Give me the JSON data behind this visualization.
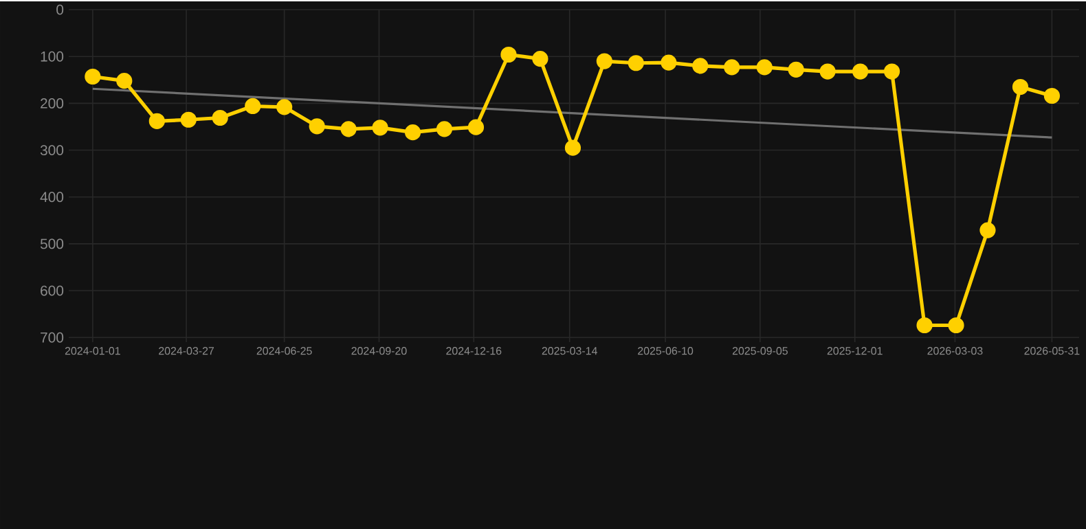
{
  "chart_data": {
    "type": "line",
    "x": [
      "2024-01-01",
      "2024-01-30",
      "2024-02-29",
      "2024-03-29",
      "2024-04-27",
      "2024-05-27",
      "2024-06-25",
      "2024-07-25",
      "2024-08-23",
      "2024-09-21",
      "2024-10-21",
      "2024-11-19",
      "2024-12-18",
      "2025-01-17",
      "2025-02-15",
      "2025-03-17",
      "2025-04-15",
      "2025-05-14",
      "2025-06-13",
      "2025-07-12",
      "2025-08-10",
      "2025-09-09",
      "2025-10-08",
      "2025-11-06",
      "2025-12-06",
      "2026-01-04",
      "2026-02-03",
      "2026-03-04",
      "2026-04-02",
      "2026-05-02",
      "2026-05-31"
    ],
    "series": [
      {
        "color": "#ffd000",
        "marker": "circle",
        "values": [
          143,
          152,
          238,
          235,
          231,
          206,
          208,
          249,
          255,
          252,
          262,
          255,
          251,
          96,
          105,
          295,
          110,
          114,
          113,
          120,
          123,
          123,
          128,
          132,
          132,
          132,
          674,
          674,
          471,
          165,
          184
        ]
      },
      {
        "type": "line",
        "color": "#707070",
        "marker": "none",
        "x": [
          "2024-01-01",
          "2026-05-31"
        ],
        "values": [
          169,
          273
        ]
      }
    ],
    "xlim": [
      "2023-12-10",
      "2026-06-25"
    ],
    "xticks": [
      "2024-01-01",
      "2024-03-27",
      "2024-06-25",
      "2024-09-20",
      "2024-12-16",
      "2025-03-14",
      "2025-06-10",
      "2025-09-05",
      "2025-12-01",
      "2026-03-03",
      "2026-05-31"
    ],
    "ylim": [
      710,
      0
    ],
    "yticks": [
      0,
      100,
      200,
      300,
      400,
      500,
      600,
      700
    ],
    "grid": true,
    "line_style": "solid"
  }
}
